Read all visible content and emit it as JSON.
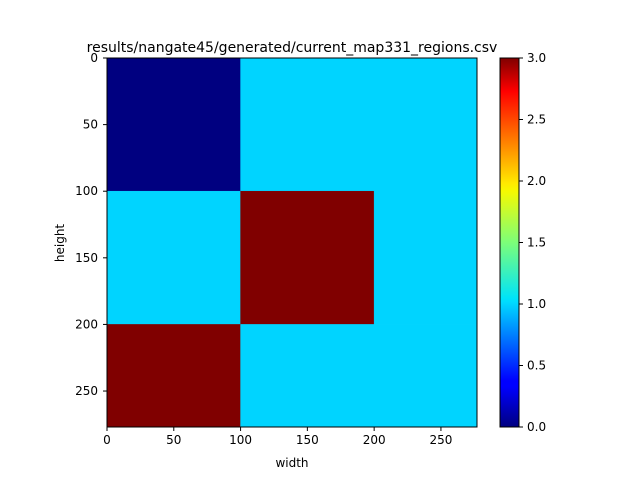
{
  "chart_data": {
    "type": "heatmap",
    "title": "results/nangate45/generated/current_map331_regions.csv",
    "xlabel": "width",
    "ylabel": "height",
    "xlim": [
      0,
      277
    ],
    "ylim": [
      0,
      277
    ],
    "y_inverted": true,
    "x_ticks": [
      0,
      50,
      100,
      150,
      200,
      250
    ],
    "y_ticks": [
      0,
      50,
      100,
      150,
      200,
      250
    ],
    "grid": false,
    "colormap": "jet",
    "colorbar": {
      "range": [
        0.0,
        3.0
      ],
      "ticks": [
        "0.0",
        "0.5",
        "1.0",
        "1.5",
        "2.0",
        "2.5",
        "3.0"
      ]
    },
    "regions": [
      {
        "x": [
          0,
          100
        ],
        "y": [
          0,
          100
        ],
        "value": 0
      },
      {
        "x": [
          100,
          277
        ],
        "y": [
          0,
          100
        ],
        "value": 1
      },
      {
        "x": [
          0,
          100
        ],
        "y": [
          100,
          200
        ],
        "value": 1
      },
      {
        "x": [
          100,
          200
        ],
        "y": [
          100,
          200
        ],
        "value": 3
      },
      {
        "x": [
          200,
          277
        ],
        "y": [
          100,
          200
        ],
        "value": 1
      },
      {
        "x": [
          0,
          100
        ],
        "y": [
          200,
          277
        ],
        "value": 3
      },
      {
        "x": [
          100,
          277
        ],
        "y": [
          200,
          277
        ],
        "value": 1
      }
    ],
    "colors": {
      "0": "#000080",
      "1": "#00d4ff",
      "3": "#800000"
    }
  }
}
